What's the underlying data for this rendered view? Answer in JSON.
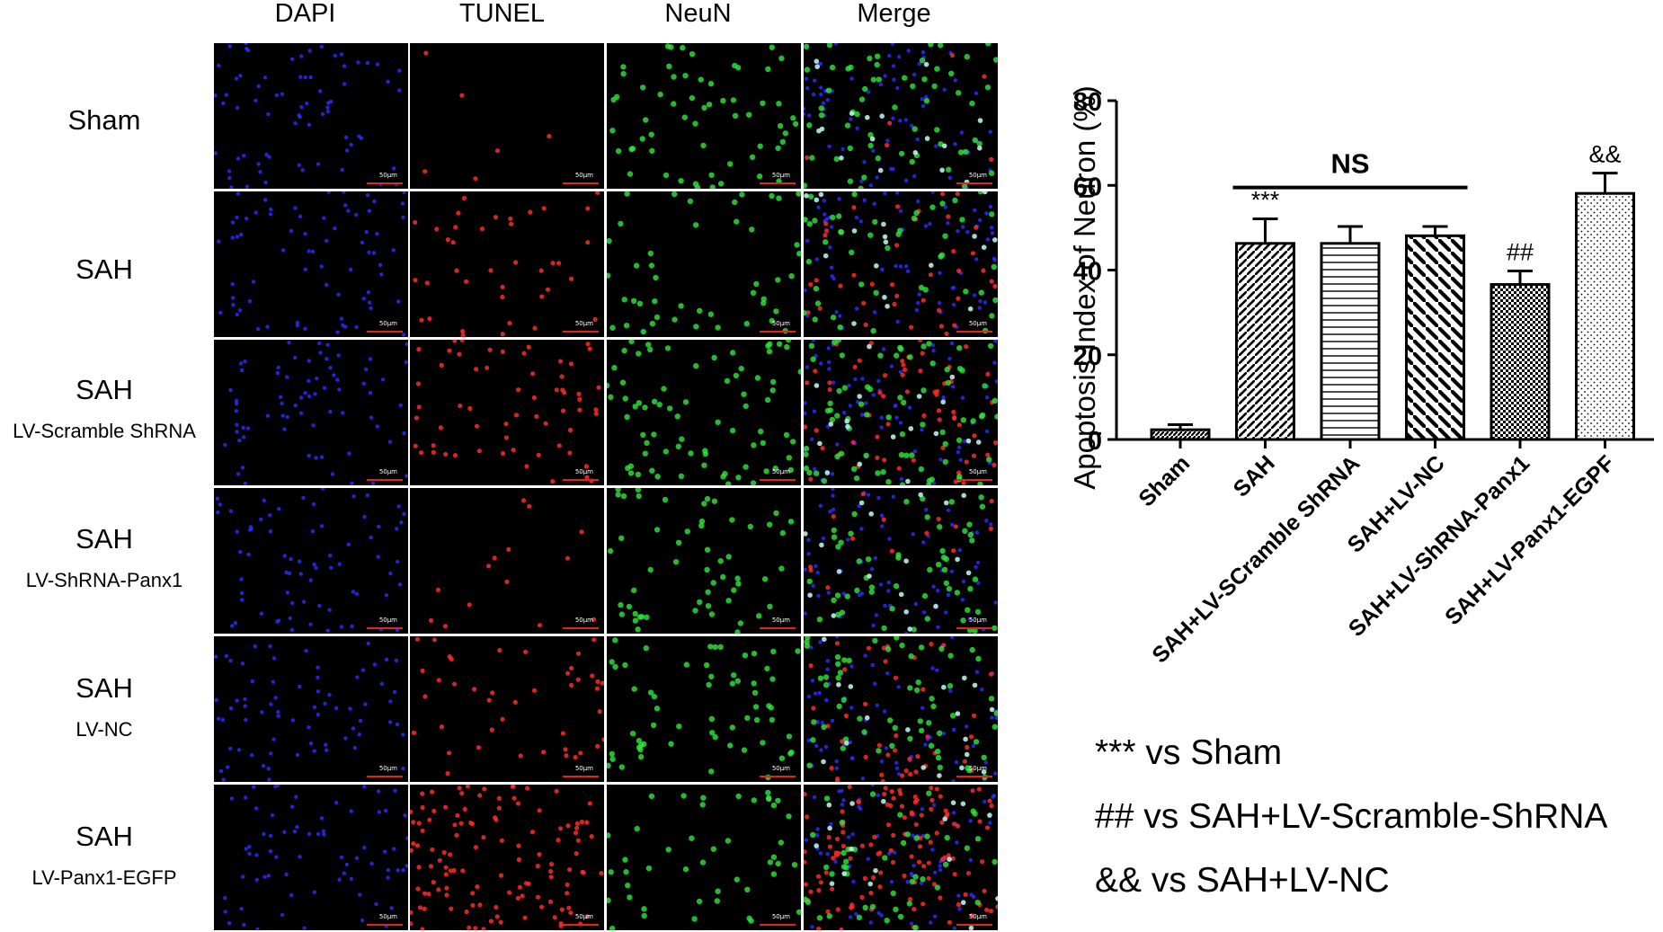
{
  "columns": [
    "DAPI",
    "TUNEL",
    "NeuN",
    "Merge"
  ],
  "rows": [
    {
      "title": "Sham",
      "subtitle": ""
    },
    {
      "title": "SAH",
      "subtitle": ""
    },
    {
      "title": "SAH",
      "subtitle": "LV-Scramble ShRNA"
    },
    {
      "title": "SAH",
      "subtitle": "LV-ShRNA-Panx1"
    },
    {
      "title": "SAH",
      "subtitle": "LV-NC"
    },
    {
      "title": "SAH",
      "subtitle": "LV-Panx1-EGFP"
    }
  ],
  "scale_bar_label": "50μm",
  "colors": {
    "dapi": "#2a2cff",
    "tunel": "#ff2a2a",
    "neun": "#2ee83c",
    "merge_overlap": "#b8f0e8",
    "scale_bar": "#e0251b"
  },
  "chart_data": {
    "type": "bar",
    "categories": [
      "Sham",
      "SAH",
      "SAH+LV-SCramble ShRNA",
      "SAH+LV-NC",
      "SAH+LV-ShRNA-Panx1",
      "SAH+LV-Panx1-EGPF"
    ],
    "values": [
      2.3,
      46.3,
      46.3,
      48.1,
      36.6,
      58.1
    ],
    "errors": [
      1.2,
      5.8,
      4.0,
      2.2,
      3.2,
      4.8
    ],
    "patterns": [
      "diagonal-dense",
      "diagonal",
      "horizontal",
      "diagonal-wide-reverse",
      "checker",
      "dots"
    ],
    "annotations": [
      "",
      "***",
      "",
      "",
      "##",
      "&&"
    ],
    "bracket": {
      "from": 1,
      "to": 3,
      "label": "NS"
    },
    "ylabel": "Apoptosis Index of Neuron (%)",
    "ylim": [
      0,
      80
    ],
    "yticks": [
      0,
      20,
      40,
      60,
      80
    ],
    "legend_notes": [
      "*** vs Sham",
      "## vs SAH+LV-Scramble-ShRNA",
      "&& vs SAH+LV-NC"
    ]
  }
}
